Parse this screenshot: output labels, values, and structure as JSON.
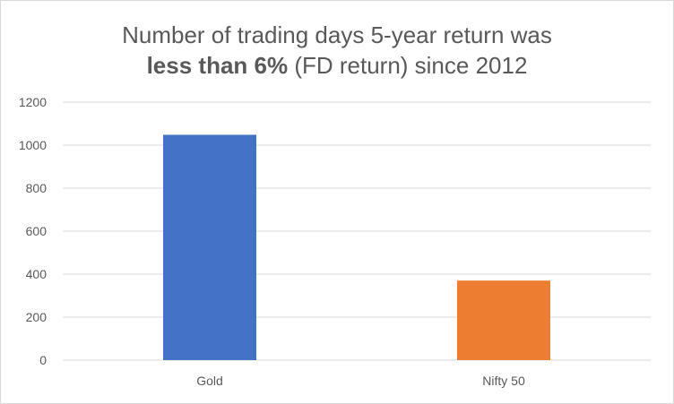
{
  "chart_data": {
    "type": "bar",
    "title_line1": "Number of trading days 5-year return was",
    "title_line2_bold": "less than 6%",
    "title_line2_rest": " (FD return) since 2012",
    "categories": [
      "Gold",
      "Nifty 50"
    ],
    "values": [
      1048,
      370
    ],
    "colors": [
      "#4472c4",
      "#ed7d31"
    ],
    "ylim": [
      0,
      1200
    ],
    "yticks": [
      "0",
      "200",
      "400",
      "600",
      "800",
      "1000",
      "1200"
    ],
    "grid": true,
    "legend": "none"
  }
}
